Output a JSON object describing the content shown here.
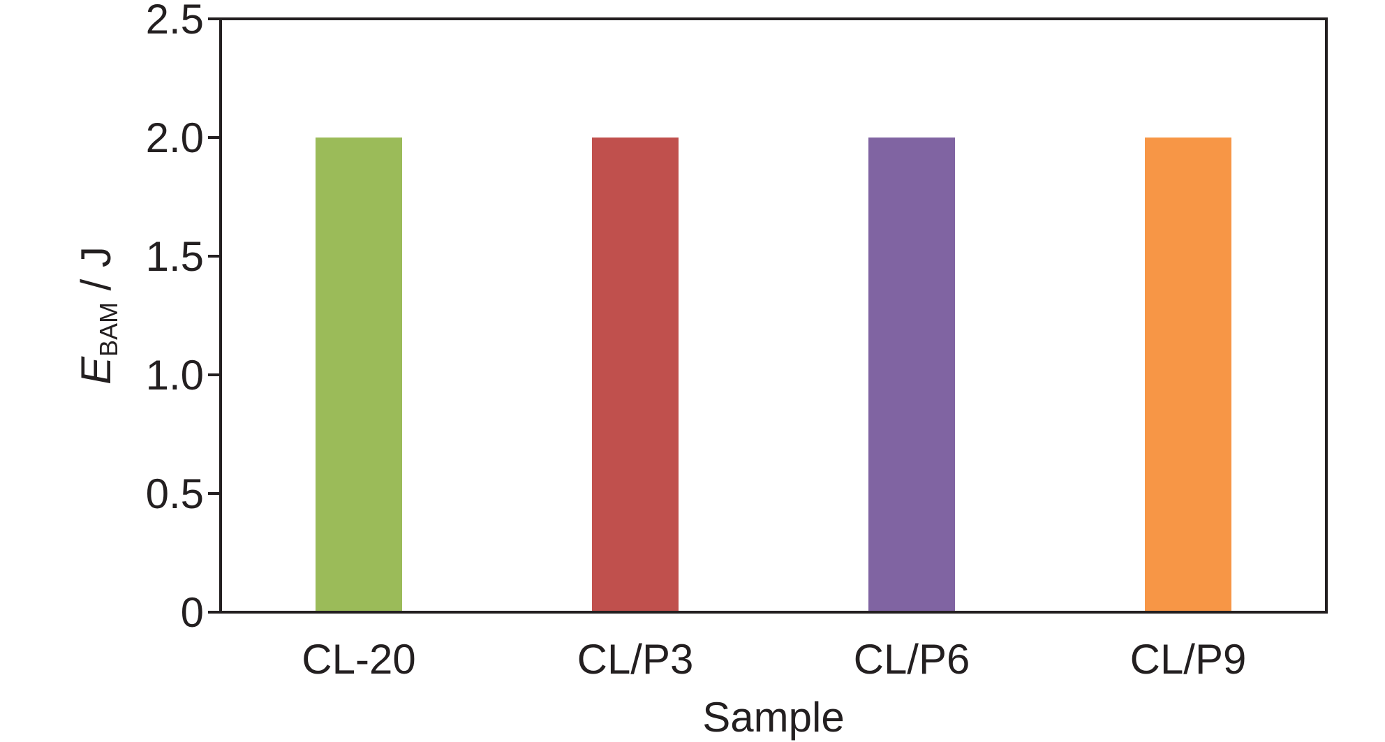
{
  "chart_data": {
    "type": "bar",
    "title": "",
    "xlabel": "Sample",
    "ylabel": {
      "symbol": "E",
      "subscript": "BAM",
      "unit": " / J"
    },
    "categories": [
      "CL-20",
      "CL/P3",
      "CL/P6",
      "CL/P9"
    ],
    "values": [
      2.0,
      2.0,
      2.0,
      2.0
    ],
    "colors": [
      "#9bbb59",
      "#c0504d",
      "#8064a2",
      "#f79646"
    ],
    "ylim": [
      0,
      2.5
    ],
    "yticks": [
      0,
      0.5,
      1.0,
      1.5,
      2.0,
      2.5
    ],
    "ytick_labels": [
      "0",
      "0.5",
      "1.0",
      "1.5",
      "2.0",
      "2.5"
    ],
    "grid": false,
    "legend": "none"
  }
}
